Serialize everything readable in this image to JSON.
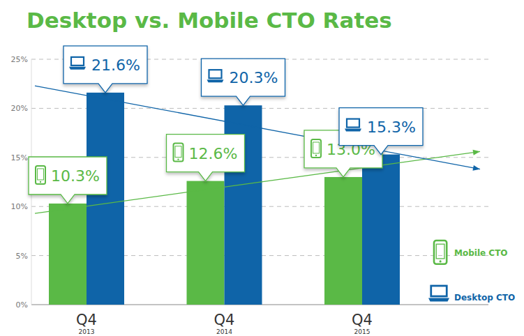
{
  "chart_data": {
    "type": "bar",
    "title": "Desktop vs. Mobile CTO Rates",
    "categories": [
      "Q4 2013",
      "Q4 2014",
      "Q4 2015"
    ],
    "series": [
      {
        "name": "Mobile CTO",
        "color": "#5ab946",
        "values": [
          10.3,
          12.6,
          13.0
        ],
        "value_labels": [
          "10.3%",
          "12.6%",
          "13.0%"
        ],
        "trend": [
          9.3,
          15.6
        ]
      },
      {
        "name": "Desktop CTO",
        "color": "#0f64a8",
        "values": [
          21.6,
          20.3,
          15.3
        ],
        "value_labels": [
          "21.6%",
          "20.3%",
          "15.3%"
        ],
        "trend": [
          22.3,
          13.8
        ]
      }
    ],
    "ylim": [
      0,
      25
    ],
    "yticks": [
      {
        "value": 0,
        "label": "0%"
      },
      {
        "value": 5,
        "label": "5%"
      },
      {
        "value": 10,
        "label": "10%"
      },
      {
        "value": 15,
        "label": "15%"
      },
      {
        "value": 20,
        "label": "20%"
      },
      {
        "value": 25,
        "label": "25%"
      }
    ],
    "grid": true,
    "data_labels": true,
    "legend": "right"
  }
}
